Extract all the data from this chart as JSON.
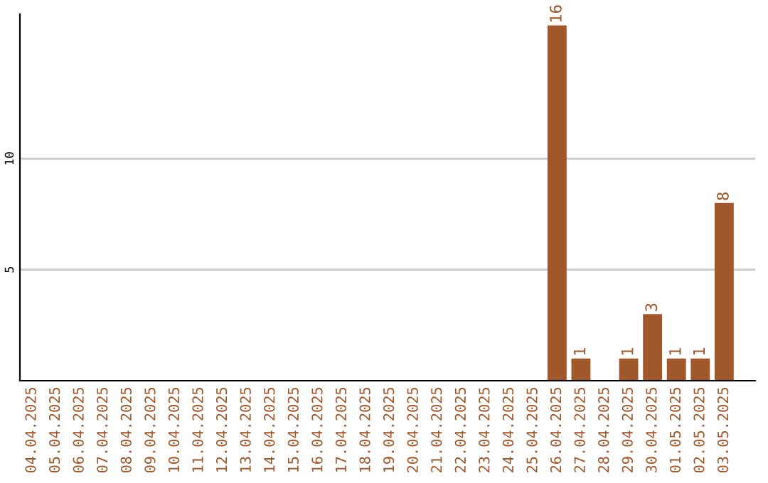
{
  "chart_data": {
    "type": "bar",
    "categories": [
      "04.04.2025",
      "05.04.2025",
      "06.04.2025",
      "07.04.2025",
      "08.04.2025",
      "09.04.2025",
      "10.04.2025",
      "11.04.2025",
      "12.04.2025",
      "13.04.2025",
      "14.04.2025",
      "15.04.2025",
      "16.04.2025",
      "17.04.2025",
      "18.04.2025",
      "19.04.2025",
      "20.04.2025",
      "21.04.2025",
      "22.04.2025",
      "23.04.2025",
      "24.04.2025",
      "25.04.2025",
      "26.04.2025",
      "27.04.2025",
      "28.04.2025",
      "29.04.2025",
      "30.04.2025",
      "01.05.2025",
      "02.05.2025",
      "03.05.2025"
    ],
    "values": [
      0,
      0,
      0,
      0,
      0,
      0,
      0,
      0,
      0,
      0,
      0,
      0,
      0,
      0,
      0,
      0,
      0,
      0,
      0,
      0,
      0,
      0,
      16,
      1,
      0,
      1,
      3,
      1,
      1,
      8
    ],
    "value_labels": [
      null,
      null,
      null,
      null,
      null,
      null,
      null,
      null,
      null,
      null,
      null,
      null,
      null,
      null,
      null,
      null,
      null,
      null,
      null,
      null,
      null,
      null,
      "16",
      "1",
      null,
      "1",
      "3",
      "1",
      "1",
      "8"
    ],
    "color": "#a0572a",
    "ylim": [
      0,
      16.5
    ],
    "yticks": [
      5,
      10
    ],
    "grid": "y"
  }
}
